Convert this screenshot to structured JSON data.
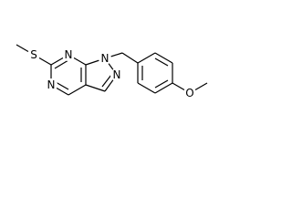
{
  "atoms": [
    {
      "label": "S"
    },
    {
      "label": "N"
    },
    {
      "label": "N"
    },
    {
      "label": "N"
    },
    {
      "label": "N"
    },
    {
      "label": "O"
    }
  ]
}
